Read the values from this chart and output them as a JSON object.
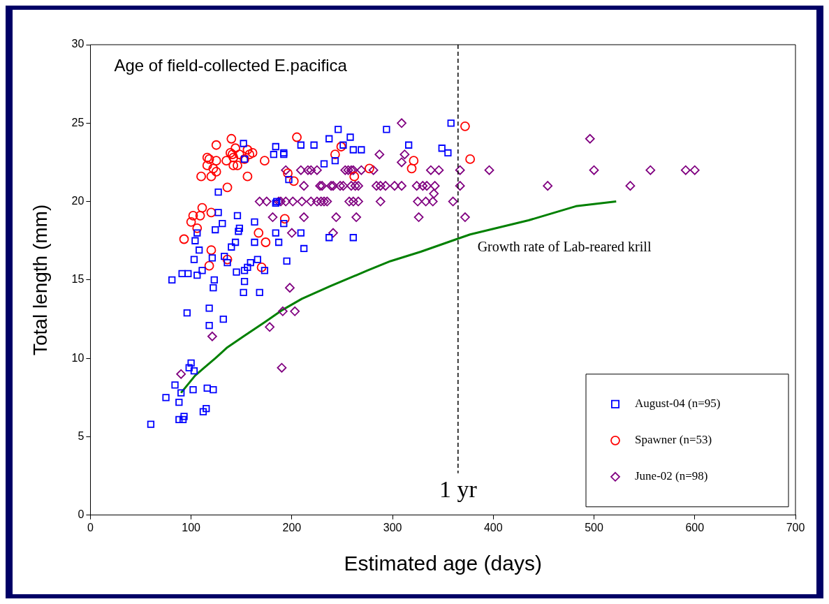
{
  "chart_data": {
    "type": "scatter",
    "title": "Age of field-collected E.pacifica",
    "xlabel": "Estimated age (days)",
    "ylabel": "Total length (mm)",
    "xlim": [
      0,
      700
    ],
    "xticks": [
      0,
      100,
      200,
      300,
      400,
      500,
      600,
      700
    ],
    "ylim": [
      0,
      30
    ],
    "yticks": [
      0,
      5,
      10,
      15,
      20,
      25,
      30
    ],
    "grid": false,
    "legend": "bottom right",
    "series": [
      {
        "name": "August-04 (n=95)",
        "color": "#0000ff",
        "marker": "square",
        "x": [
          60,
          75,
          84,
          88,
          90,
          88,
          93,
          92,
          98,
          100,
          103,
          102,
          112,
          115,
          116,
          122,
          81,
          91,
          97,
          96,
          103,
          104,
          106,
          108,
          106,
          111,
          118,
          118,
          121,
          123,
          122,
          124,
          127,
          131,
          133,
          132,
          136,
          140,
          144,
          145,
          146,
          147,
          148,
          152,
          153,
          153,
          156,
          159,
          163,
          163,
          166,
          168,
          173,
          152,
          153,
          184,
          182,
          192,
          127,
          184,
          246,
          294,
          358,
          209,
          222,
          237,
          258,
          251,
          261,
          269,
          316,
          349,
          355,
          243,
          232,
          197,
          185,
          192,
          192,
          209,
          237,
          261,
          212,
          187,
          184,
          195
        ],
        "values": [
          5.8,
          7.5,
          8.3,
          7.2,
          7.8,
          6.1,
          6.3,
          6.1,
          9.4,
          9.7,
          9.2,
          8.0,
          6.6,
          6.8,
          8.1,
          8.0,
          15.0,
          15.4,
          15.4,
          12.9,
          16.3,
          17.5,
          18.0,
          16.9,
          15.3,
          15.6,
          13.2,
          12.1,
          16.4,
          15.0,
          14.5,
          18.2,
          19.3,
          18.6,
          16.5,
          12.5,
          16.1,
          17.1,
          17.4,
          15.5,
          19.1,
          18.1,
          18.3,
          14.2,
          14.9,
          15.6,
          15.8,
          16.1,
          17.4,
          18.7,
          16.3,
          14.2,
          15.6,
          23.7,
          22.7,
          23.5,
          23.0,
          23.1,
          20.6,
          19.9,
          24.6,
          24.6,
          25.0,
          23.6,
          23.6,
          24.0,
          24.1,
          23.6,
          23.3,
          23.3,
          23.6,
          23.4,
          23.1,
          22.6,
          22.4,
          21.4,
          20.0,
          23.0,
          18.6,
          18.0,
          17.7,
          17.7,
          17.0,
          17.4,
          18.0,
          16.2
        ]
      },
      {
        "name": "Spawner (n=53)",
        "color": "#ff0000",
        "marker": "circle",
        "x": [
          140,
          125,
          116,
          118,
          125,
          116,
          122,
          125,
          110,
          120,
          144,
          139,
          142,
          141,
          148,
          156,
          158,
          161,
          153,
          142,
          146,
          135,
          156,
          173,
          205,
          136,
          111,
          102,
          120,
          109,
          100,
          106,
          93,
          167,
          174,
          120,
          193,
          196,
          202,
          136,
          118,
          170,
          249,
          243,
          262,
          277,
          321,
          319,
          372,
          377
        ],
        "values": [
          24.0,
          23.6,
          22.8,
          22.7,
          22.6,
          22.3,
          22.1,
          21.9,
          21.6,
          21.6,
          23.4,
          23.1,
          22.8,
          23.0,
          23.0,
          23.3,
          23.0,
          23.1,
          22.7,
          22.3,
          22.3,
          22.6,
          21.6,
          22.6,
          24.1,
          20.9,
          19.6,
          19.1,
          19.3,
          19.1,
          18.7,
          18.3,
          17.6,
          18.0,
          17.4,
          16.9,
          18.9,
          21.8,
          21.3,
          16.3,
          15.9,
          15.8,
          23.5,
          23.0,
          21.6,
          22.1,
          22.6,
          22.1,
          24.8,
          22.7
        ]
      },
      {
        "name": "June-02 (n=98)",
        "color": "#800080",
        "marker": "diamond",
        "x": [
          90,
          121,
          198,
          191,
          203,
          178,
          190,
          309,
          287,
          312,
          309,
          194,
          209,
          216,
          219,
          225,
          253,
          256,
          259,
          261,
          269,
          281,
          338,
          346,
          367,
          212,
          228,
          230,
          239,
          241,
          248,
          251,
          259,
          263,
          266,
          284,
          288,
          293,
          302,
          309,
          324,
          330,
          334,
          342,
          367,
          168,
          175,
          189,
          187,
          194,
          201,
          210,
          219,
          225,
          229,
          232,
          235,
          257,
          261,
          266,
          288,
          325,
          333,
          340,
          360,
          181,
          212,
          244,
          264,
          326,
          372,
          200,
          241,
          341,
          396,
          454,
          496,
          500,
          536,
          556,
          591,
          600
        ],
        "values": [
          9.0,
          11.4,
          14.5,
          13.0,
          13.0,
          12.0,
          9.4,
          25.0,
          23.0,
          23.0,
          22.5,
          22,
          22,
          22,
          22,
          22,
          22,
          22,
          22,
          22,
          22,
          22,
          22,
          22,
          22,
          21,
          21,
          21,
          21,
          21,
          21,
          21,
          21,
          21,
          21,
          21,
          21,
          21,
          21,
          21,
          21,
          21,
          21,
          21,
          21,
          20,
          20,
          20,
          20,
          20,
          20,
          20,
          20,
          20,
          20,
          20,
          20,
          20,
          20,
          20,
          20,
          20,
          20,
          20,
          20,
          19,
          19,
          19,
          19,
          19,
          19,
          18,
          18,
          20.5,
          22,
          21,
          24,
          22,
          21,
          22,
          22,
          22
        ]
      },
      {
        "type": "line",
        "color": "#008000",
        "marker": "none",
        "x": [
          90,
          104,
          113,
          124,
          136,
          152,
          173,
          191,
          210,
          238,
          275,
          298,
          328,
          368,
          377,
          435,
          482,
          522
        ],
        "values": [
          7.8,
          8.9,
          9.4,
          10.0,
          10.7,
          11.4,
          12.3,
          13.1,
          13.8,
          14.6,
          15.6,
          16.2,
          16.8,
          17.7,
          17.9,
          18.8,
          19.7,
          20.0
        ]
      }
    ],
    "ref_lines": [
      {
        "axis": "x",
        "value": 365,
        "label": "1 yr",
        "color": "#000000",
        "line_style": "dashed"
      }
    ],
    "annotations": [
      "Growth rate of Lab-reared krill"
    ]
  }
}
